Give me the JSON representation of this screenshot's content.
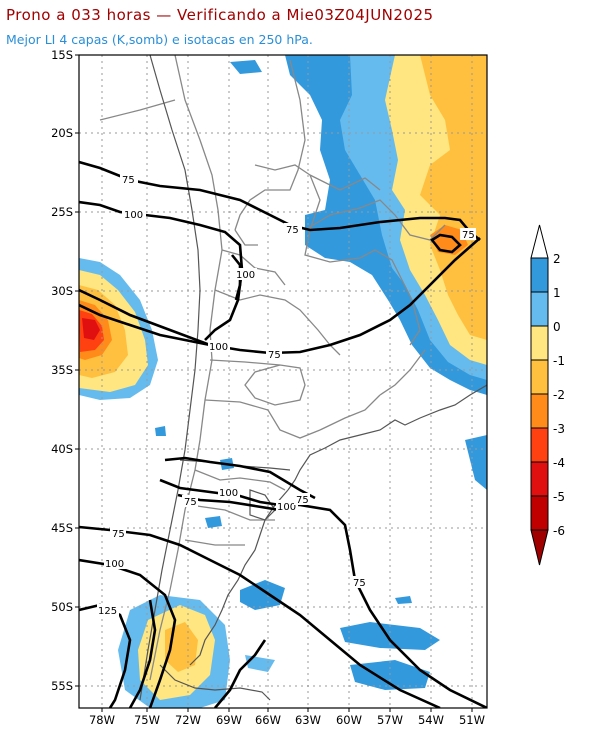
{
  "header": {
    "title": "Prono a 033 horas — Verificando a Mie03Z04JUN2025",
    "subtitle": "Mejor LI 4 capas (K,somb) e isotacas en 250 hPa."
  },
  "map": {
    "lon_ticks": [
      "78W",
      "75W",
      "72W",
      "69W",
      "66W",
      "63W",
      "60W",
      "57W",
      "54W",
      "51W"
    ],
    "lat_ticks": [
      "15S",
      "20S",
      "25S",
      "30S",
      "35S",
      "40S",
      "45S",
      "50S",
      "55S"
    ],
    "colors": {
      "blue_dark": "#3399dd",
      "blue_light": "#66bbee",
      "yellow_light": "#ffe680",
      "orange_light": "#ffc040",
      "orange": "#ff8c1a",
      "red_orange": "#ff4010",
      "red": "#e01010",
      "dark_red": "#a00000",
      "border": "#888888",
      "contour": "#000000",
      "grid": "#999999"
    },
    "contour_labels": {
      "c75_a": "75",
      "c100_a": "100",
      "c75_b": "75",
      "c75_c": "75",
      "c100_b": "100",
      "c100_c": "100",
      "c75_d": "75",
      "c75_e": "75",
      "c100_d": "100",
      "c100_e": "100",
      "c75_f": "75",
      "c75_g": "75",
      "c100_f": "100",
      "c125": "125",
      "c75_h": "75"
    }
  },
  "colorbar": {
    "labels": [
      "2",
      "1",
      "0",
      "-1",
      "-2",
      "-3",
      "-4",
      "-5",
      "-6"
    ]
  }
}
